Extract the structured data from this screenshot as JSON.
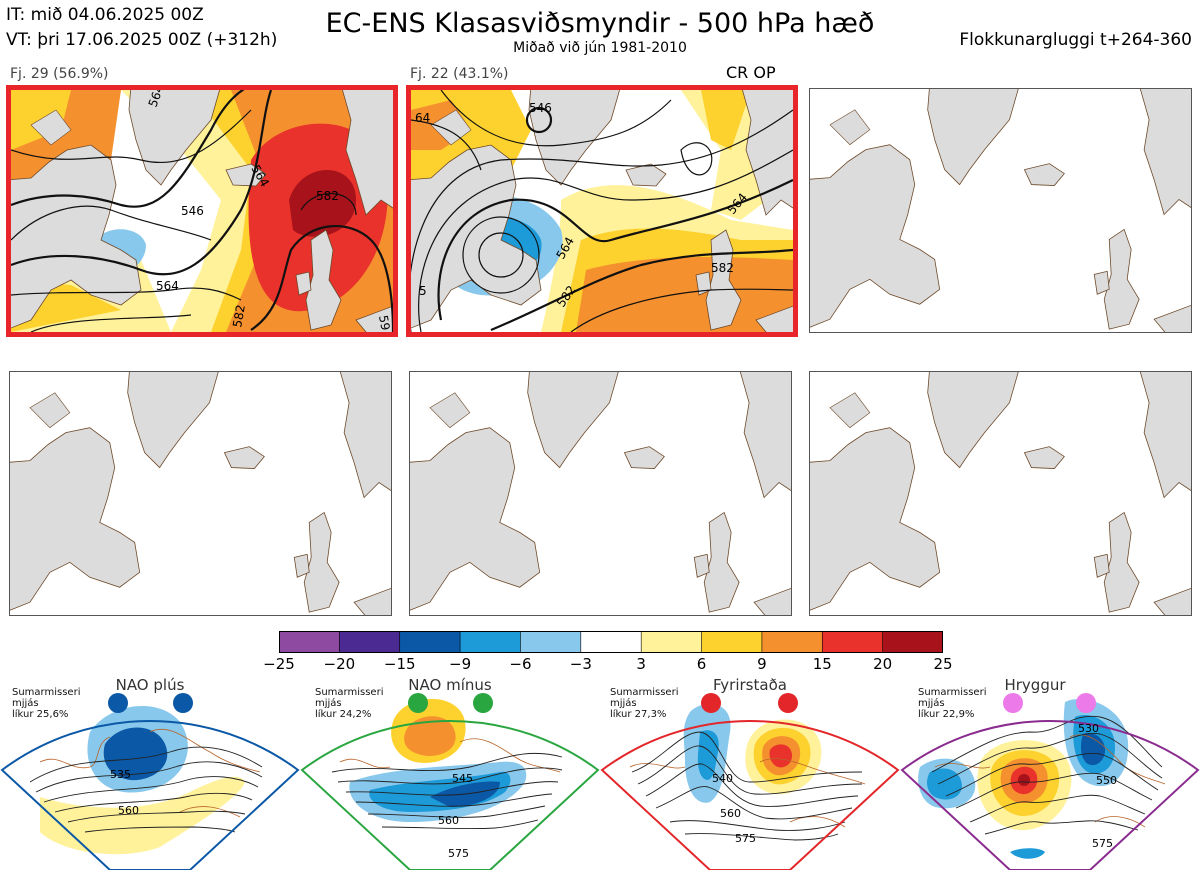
{
  "header": {
    "it": "IT: mið 04.06.2025 00Z",
    "vt": "VT: þri 17.06.2025 00Z  (+312h)",
    "title": "EC-ENS Klasasviðsmyndir - 500 hPa hæð",
    "subtitle": "Miðað við jún 1981-2010",
    "window": "Flokkunargluggi t+264-360"
  },
  "clusters": [
    {
      "label": "Fj. 29 (56.9%)",
      "selected": true,
      "contours": [
        "546",
        "564",
        "564",
        "582",
        "582",
        "564",
        "59"
      ]
    },
    {
      "label": "Fj. 22 (43.1%)",
      "selected": true,
      "badge": "CR OP",
      "contours": [
        "64",
        "546",
        "564",
        "564",
        "582",
        "582",
        "5"
      ]
    }
  ],
  "colorbar": {
    "colors": [
      "#8e4aa0",
      "#4b2a91",
      "#0a58a6",
      "#1d9ad8",
      "#88c8ec",
      "#ffffff",
      "#fff29b",
      "#fdd22f",
      "#f5902f",
      "#e8322b",
      "#a8121a"
    ],
    "labels": [
      "−25",
      "−20",
      "−15",
      "−9",
      "−6",
      "−3",
      "3",
      "6",
      "9",
      "15",
      "20",
      "25"
    ]
  },
  "regimes": [
    {
      "name": "NAO plús",
      "info": [
        "Sumarmisseri",
        "mjjás",
        "líkur 25,6%"
      ],
      "color": "#0a58a6",
      "contours": [
        "535",
        "560"
      ]
    },
    {
      "name": "NAO mínus",
      "info": [
        "Sumarmisseri",
        "mjjás",
        "líkur 24,2%"
      ],
      "color": "#2aa640",
      "contours": [
        "545",
        "560",
        "575"
      ]
    },
    {
      "name": "Fyrirstaða",
      "info": [
        "Sumarmisseri",
        "mjjás",
        "líkur 27,3%"
      ],
      "color": "#e3262a",
      "contours": [
        "540",
        "560",
        "575"
      ]
    },
    {
      "name": "Hryggur",
      "info": [
        "Sumarmisseri",
        "mjjás",
        "líkur 22,9%"
      ],
      "color": "#8a2b8f",
      "contours": [
        "530",
        "550",
        "575"
      ]
    }
  ]
}
